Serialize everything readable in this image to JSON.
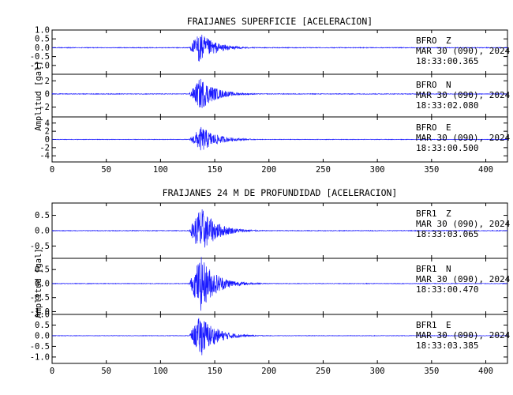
{
  "colors": {
    "trace": "#1a1aff",
    "axis": "#000000",
    "background": "#ffffff"
  },
  "chart_data": [
    {
      "type": "line",
      "title": "FRAIJANES SUPERFICIE [ACELERACION]",
      "ylabel": "Amplitud [gal]",
      "xlim": [
        0,
        420
      ],
      "xticks": [
        "0",
        "50",
        "100",
        "150",
        "200",
        "250",
        "300",
        "350",
        "400"
      ],
      "grid": false,
      "panels": [
        {
          "station": "BFRO",
          "component": "Z",
          "date": "MAR 30 (090), 2024",
          "time": "18:33:00.365",
          "ylim": [
            -1.5,
            1.0
          ],
          "yticks": [
            "1.0",
            "0.5",
            "0.0",
            "-0.5",
            "-1.0"
          ],
          "trace": {
            "onset": 126,
            "peak_time": 136,
            "peak_amplitude": 0.9,
            "noise_level": 0.02
          }
        },
        {
          "station": "BFRO",
          "component": "N",
          "date": "MAR 30 (090), 2024",
          "time": "18:33:02.080",
          "ylim": [
            -3.5,
            3.0
          ],
          "yticks": [
            "2",
            "0",
            "-2"
          ],
          "trace": {
            "onset": 126,
            "peak_time": 137,
            "peak_amplitude": 2.5,
            "noise_level": 0.05
          }
        },
        {
          "station": "BFRO",
          "component": "E",
          "date": "MAR 30 (090), 2024",
          "time": "18:33:00.500",
          "ylim": [
            -5.5,
            5.5
          ],
          "yticks": [
            "4",
            "2",
            "0",
            "-2",
            "-4"
          ],
          "trace": {
            "onset": 126,
            "peak_time": 138,
            "peak_amplitude": 3.2,
            "noise_level": 0.06
          }
        }
      ]
    },
    {
      "type": "line",
      "title": "FRAIJANES 24 M DE PROFUNDIDAD [ACELERACION]",
      "ylabel": "Amplitud [gal]",
      "xlim": [
        0,
        420
      ],
      "xticks": [
        "0",
        "50",
        "100",
        "150",
        "200",
        "250",
        "300",
        "350",
        "400"
      ],
      "grid": false,
      "panels": [
        {
          "station": "BFR1",
          "component": "Z",
          "date": "MAR 30 (090), 2024",
          "time": "18:33:03.065",
          "ylim": [
            -0.9,
            0.9
          ],
          "yticks": [
            "0.5",
            "0.0",
            "-0.5"
          ],
          "trace": {
            "onset": 126,
            "peak_time": 137,
            "peak_amplitude": 0.8,
            "noise_level": 0.01
          }
        },
        {
          "station": "BFR1",
          "component": "N",
          "date": "MAR 30 (090), 2024",
          "time": "18:33:00.470",
          "ylim": [
            -1.1,
            0.9
          ],
          "yticks": [
            "0.5",
            "0.0",
            "-0.5",
            "-1.0"
          ],
          "trace": {
            "onset": 126,
            "peak_time": 137,
            "peak_amplitude": 1.0,
            "noise_level": 0.01
          }
        },
        {
          "station": "BFR1",
          "component": "E",
          "date": "MAR 30 (090), 2024",
          "time": "18:33:03.385",
          "ylim": [
            -1.3,
            1.0
          ],
          "yticks": [
            "1.0",
            "0.5",
            "0.0",
            "-0.5",
            "-1.0"
          ],
          "trace": {
            "onset": 126,
            "peak_time": 137,
            "peak_amplitude": 1.0,
            "noise_level": 0.01
          }
        }
      ]
    }
  ]
}
